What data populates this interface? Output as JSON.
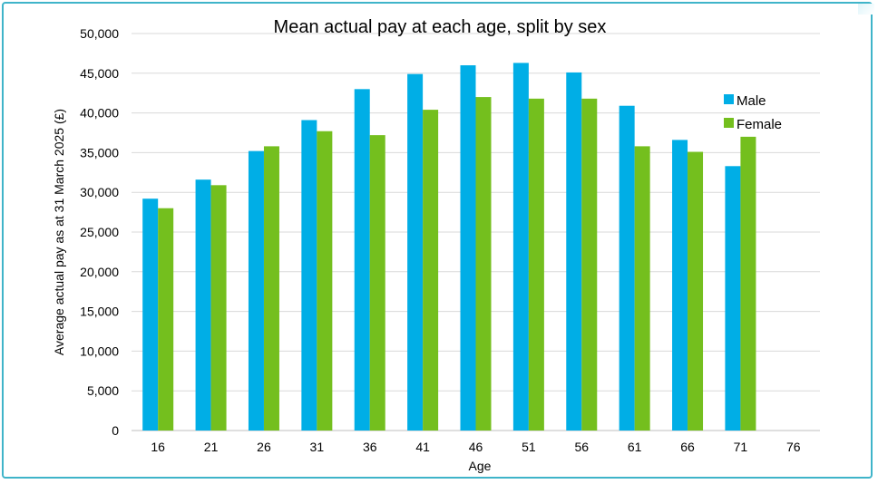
{
  "chart_data": {
    "type": "bar",
    "title": "Mean actual pay at each age, split by sex",
    "xlabel": "Age",
    "ylabel": "Average actual pay as at 31 March 2025 (£)",
    "categories": [
      "16",
      "21",
      "26",
      "31",
      "36",
      "41",
      "46",
      "51",
      "56",
      "61",
      "66",
      "71",
      "76"
    ],
    "series": [
      {
        "name": "Male",
        "color": "#00aee6",
        "values": [
          29200,
          31600,
          35200,
          39100,
          43000,
          44900,
          46000,
          46300,
          45100,
          40900,
          36600,
          33300,
          null
        ]
      },
      {
        "name": "Female",
        "color": "#74bf1e",
        "values": [
          28000,
          30900,
          35800,
          37700,
          37200,
          40400,
          42000,
          41800,
          41800,
          35800,
          35100,
          37000,
          null
        ]
      }
    ],
    "ylim": [
      0,
      50000
    ],
    "yticks": [
      0,
      5000,
      10000,
      15000,
      20000,
      25000,
      30000,
      35000,
      40000,
      45000,
      50000
    ],
    "ytick_labels": [
      "0",
      "5,000",
      "10,000",
      "15,000",
      "20,000",
      "25,000",
      "30,000",
      "35,000",
      "40,000",
      "45,000",
      "50,000"
    ],
    "grid": true,
    "legend_position": "right"
  }
}
